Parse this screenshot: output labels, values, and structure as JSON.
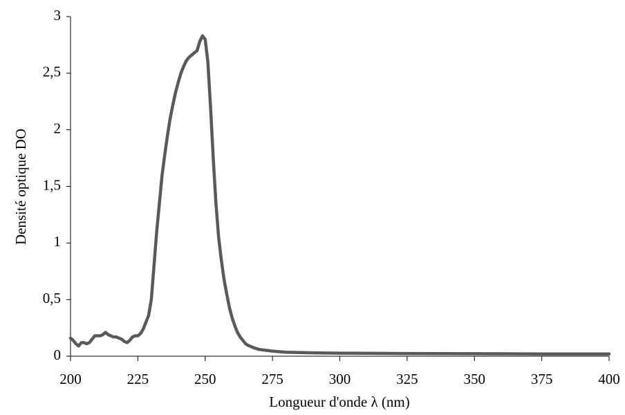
{
  "chart_data": {
    "type": "line",
    "x_label": "Longueur d'onde λ (nm)",
    "y_label": "Densité optique DO",
    "x": [
      200,
      201,
      202,
      203,
      204,
      205,
      206,
      207,
      208,
      209,
      210,
      211,
      212,
      213,
      214,
      215,
      216,
      217,
      218,
      219,
      220,
      221,
      222,
      223,
      224,
      225,
      226,
      227,
      228,
      229,
      230,
      231,
      232,
      233,
      234,
      235,
      236,
      237,
      238,
      239,
      240,
      241,
      242,
      243,
      244,
      245,
      246,
      247,
      248,
      249,
      250,
      251,
      252,
      253,
      254,
      255,
      256,
      257,
      258,
      259,
      260,
      261,
      262,
      263,
      264,
      265,
      266,
      268,
      270,
      275,
      280,
      290,
      300,
      325,
      350,
      375,
      400
    ],
    "values": [
      0.16,
      0.14,
      0.11,
      0.09,
      0.12,
      0.12,
      0.11,
      0.12,
      0.15,
      0.18,
      0.18,
      0.18,
      0.19,
      0.21,
      0.19,
      0.18,
      0.17,
      0.17,
      0.16,
      0.15,
      0.13,
      0.12,
      0.14,
      0.17,
      0.18,
      0.18,
      0.2,
      0.24,
      0.3,
      0.36,
      0.5,
      0.8,
      1.1,
      1.35,
      1.6,
      1.78,
      1.95,
      2.1,
      2.22,
      2.33,
      2.42,
      2.5,
      2.56,
      2.61,
      2.64,
      2.66,
      2.68,
      2.7,
      2.78,
      2.83,
      2.8,
      2.6,
      2.2,
      1.75,
      1.35,
      1.05,
      0.85,
      0.68,
      0.55,
      0.43,
      0.34,
      0.27,
      0.21,
      0.17,
      0.14,
      0.11,
      0.095,
      0.075,
      0.06,
      0.045,
      0.035,
      0.03,
      0.027,
      0.024,
      0.022,
      0.02,
      0.02
    ],
    "color": "#595959",
    "xlim": [
      200,
      400
    ],
    "xticks": [
      200,
      225,
      250,
      275,
      300,
      325,
      350,
      375,
      400
    ],
    "ylim": [
      0,
      3
    ],
    "yticks": [
      0,
      {
        "value": 0.5,
        "label": "0,5"
      },
      1,
      {
        "value": 1.5,
        "label": "1,5"
      },
      2,
      {
        "value": 2.5,
        "label": "2,5"
      },
      3
    ],
    "grid": false
  }
}
